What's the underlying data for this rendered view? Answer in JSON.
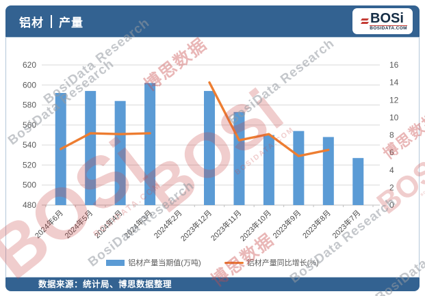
{
  "header": {
    "title_left": "铝材",
    "title_right": "产量",
    "bg_color": "#336291"
  },
  "logo": {
    "text": "BOSi",
    "subtext": "BOSIDATA.COM"
  },
  "footer": {
    "source": "数据来源：统计局、博思数据整理"
  },
  "watermark": {
    "logo_text": "BOSi",
    "logo_sub": "BOSIDATA.COM",
    "cn": "博思数据",
    "en": "BosiData Research"
  },
  "colors": {
    "bar": "#5B9BD5",
    "line": "#ED7D31",
    "grid": "#D9D9D9",
    "axis": "#BFBFBF"
  },
  "chart_data": {
    "type": "bar",
    "subtype": "bar+line combo, dual axis",
    "categories": [
      "2024年6月",
      "2024年5月",
      "2024年4月",
      "2024年3月",
      "2024年2月",
      "2023年12月",
      "2023年11月",
      "2023年10月",
      "2023年9月",
      "2023年8月",
      "2023年7月"
    ],
    "series": [
      {
        "name": "铝材产量当期值(万吨)",
        "type": "bar",
        "axis": "left",
        "color": "#5B9BD5",
        "values": [
          592,
          594,
          584,
          602,
          null,
          594,
          573,
          550,
          554,
          548,
          527
        ]
      },
      {
        "name": "铝材产量同比增长(%)",
        "type": "line",
        "axis": "right",
        "color": "#ED7D31",
        "values": [
          6.4,
          8.2,
          8.1,
          8.2,
          null,
          14.0,
          7.4,
          8.1,
          5.6,
          6.3,
          null
        ]
      }
    ],
    "left_axis": {
      "min": 480,
      "max": 620,
      "step": 20
    },
    "right_axis": {
      "min": 0,
      "max": 16,
      "step": 2
    },
    "grid": true,
    "legend_position": "bottom"
  }
}
